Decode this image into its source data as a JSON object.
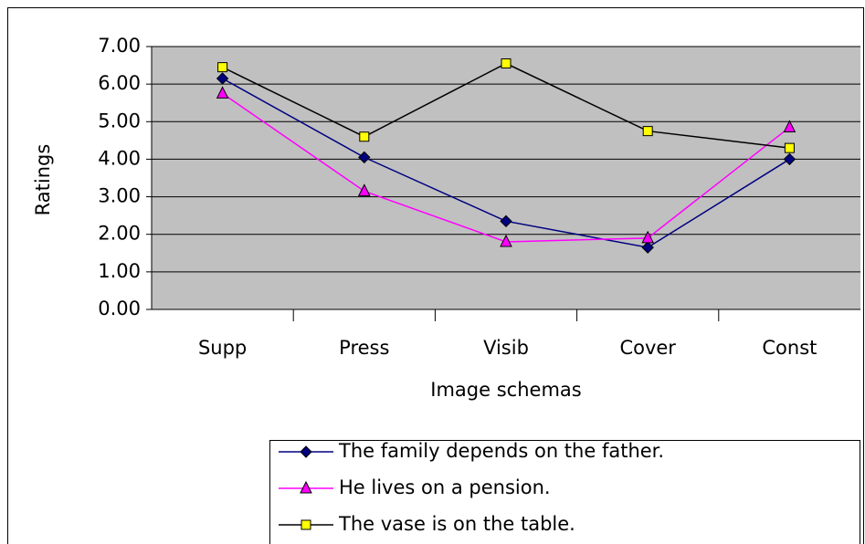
{
  "chart_data": {
    "type": "line",
    "xlabel": "Image schemas",
    "ylabel": "Ratings",
    "categories": [
      "Supp",
      "Press",
      "Visib",
      "Cover",
      "Const"
    ],
    "series": [
      {
        "name": "The family depends on the father.",
        "color": "#000080",
        "marker": "diamond",
        "marker_color": "#000080",
        "values": [
          6.15,
          4.05,
          2.35,
          1.65,
          4.0
        ]
      },
      {
        "name": "He lives on a pension.",
        "color": "#ff00ff",
        "marker": "triangle",
        "marker_color": "#ff00ff",
        "values": [
          5.75,
          3.15,
          1.8,
          1.9,
          4.85
        ]
      },
      {
        "name": "The vase is on the table.",
        "color": "#000000",
        "marker": "square",
        "marker_color": "#ffff00",
        "values": [
          6.45,
          4.6,
          6.55,
          4.75,
          4.3
        ]
      }
    ],
    "ylim": [
      0,
      7
    ],
    "yticks": [
      {
        "value": 0,
        "label": "0.00"
      },
      {
        "value": 1,
        "label": "1.00"
      },
      {
        "value": 2,
        "label": "2.00"
      },
      {
        "value": 3,
        "label": "3.00"
      },
      {
        "value": 4,
        "label": "4.00"
      },
      {
        "value": 5,
        "label": "5.00"
      },
      {
        "value": 6,
        "label": "6.00"
      },
      {
        "value": 7,
        "label": "7.00"
      }
    ],
    "grid": true,
    "plot_background": "#c0c0c0",
    "legend": "bottom"
  }
}
